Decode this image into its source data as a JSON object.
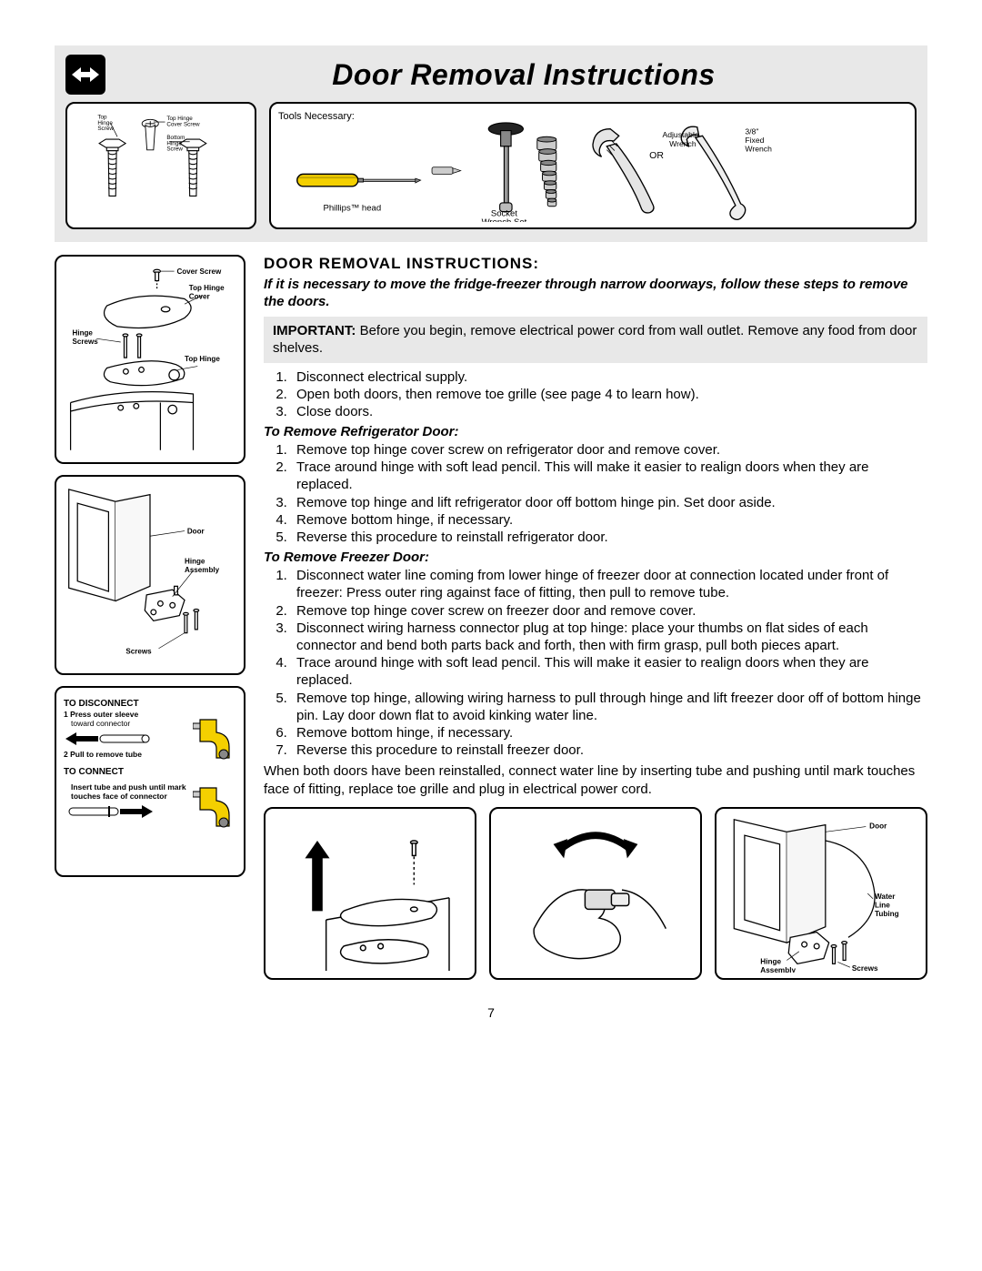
{
  "page_number": "7",
  "title": "Door Removal Instructions",
  "screws_box": {
    "labels": {
      "top_hinge_screw": "Top\nHinge\nScrew",
      "top_hinge_cover_screw": "Top Hinge\nCover Screw",
      "bottom_hinge_screw": "Bottom\nHinge\nScrew"
    }
  },
  "tools_box": {
    "heading": "Tools Necessary:",
    "labels": {
      "phillips": "Phillips™ head",
      "socket": "Socket\nWrench Set",
      "or": "OR",
      "adjustable_wrench": "Adjustable\nWrench",
      "fixed_wrench": "3/8\"\nFixed\nWrench"
    }
  },
  "diagram_top": {
    "labels": {
      "cover_screw": "Cover Screw",
      "top_hinge_cover": "Top Hinge\nCover",
      "hinge_screws": "Hinge\nScrews",
      "top_hinge": "Top Hinge"
    }
  },
  "diagram_mid": {
    "labels": {
      "door": "Door",
      "hinge_assembly": "Hinge\nAssembly",
      "screws": "Screws"
    }
  },
  "diagram_connect": {
    "to_disconnect_title": "TO DISCONNECT",
    "disconnect_1": "1 Press outer sleeve",
    "disconnect_1b": "toward connector",
    "disconnect_2": "2 Pull to remove tube",
    "to_connect_title": "TO CONNECT",
    "connect_1": "Insert tube and push until mark",
    "connect_1b": "touches face of connector"
  },
  "section_title": "DOOR  REMOVAL  INSTRUCTIONS:",
  "intro": "If it is necessary to move the fridge-freezer through narrow doorways, follow these steps to remove the doors.",
  "important_label": "IMPORTANT:",
  "important_text": "Before you begin, remove electrical power cord from  wall outlet. Remove any food from door shelves.",
  "initial_steps": [
    "Disconnect electrical supply.",
    "Open both doors, then remove toe grille (see page 4 to learn how).",
    "Close doors."
  ],
  "fridge_heading": "To Remove Refrigerator Door:",
  "fridge_steps": [
    "Remove top hinge cover screw on refrigerator door and remove cover.",
    "Trace around hinge with soft lead pencil. This will make it easier to realign doors when they are replaced.",
    "Remove top hinge and lift refrigerator door off bottom hinge pin. Set door aside.",
    "Remove bottom hinge, if necessary.",
    "Reverse this procedure to reinstall refrigerator door."
  ],
  "freezer_heading": "To Remove Freezer Door:",
  "freezer_steps": [
    "Disconnect water line coming from lower hinge of freezer door at connection located under front of freezer: Press outer ring against face of fitting, then pull to remove tube.",
    "Remove top hinge cover screw on freezer door and remove cover.",
    "Disconnect wiring harness connector plug at top hinge: place your thumbs on flat sides of each connector and bend both parts back and forth, then with firm grasp, pull both pieces apart.",
    "Trace around hinge with soft lead pencil. This will make it easier to realign doors when they are replaced.",
    "Remove top hinge, allowing wiring harness to pull through hinge and lift freezer door off of bottom hinge pin. Lay door down flat to avoid kinking water line.",
    "Remove bottom hinge, if necessary.",
    "Reverse this procedure to reinstall freezer door."
  ],
  "closing_text": "When both doors have been reinstalled, connect water line by inserting tube and pushing until mark touches face of fitting, replace toe grille and plug in electrical power cord.",
  "bottom_right_labels": {
    "door": "Door",
    "water_line": "Water\nLine\nTubing",
    "hinge_assembly": "Hinge\nAssembly",
    "screws": "Screws"
  },
  "colors": {
    "band_bg": "#e8e8e8",
    "yellow": "#f4d000"
  }
}
